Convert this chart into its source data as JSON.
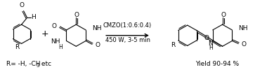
{
  "background_color": "#ffffff",
  "arrow_text_line1": "CMZO(1:0.6:0.4)",
  "arrow_text_line2": "450 W, 3-5 min",
  "bottom_text_pre": "R= -H, -CH",
  "bottom_text_sub": "3",
  "bottom_text_post": " etc",
  "yield_text": "Yield 90-94 %",
  "text_color": "#000000",
  "font_size_labels": 6.5,
  "font_size_arrow": 6.0,
  "font_size_bottom": 6.5
}
